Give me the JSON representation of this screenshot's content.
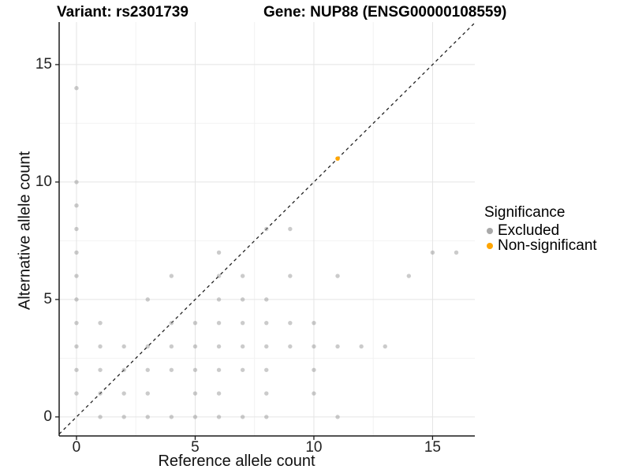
{
  "title": {
    "variant": "Variant: rs2301739",
    "gene": "Gene: NUP88 (ENSG00000108559)"
  },
  "axes": {
    "x_label": "Reference allele count",
    "y_label": "Alternative allele count",
    "x_tick_labels": [
      "0",
      "5",
      "10",
      "15"
    ],
    "y_tick_labels": [
      "0",
      "5",
      "10",
      "15"
    ]
  },
  "legend": {
    "title": "Significance",
    "items": [
      {
        "label": "Excluded",
        "color": "#a9a9a9"
      },
      {
        "label": "Non-significant",
        "color": "#FFA500"
      }
    ]
  },
  "chart_data": {
    "type": "scatter",
    "title": "Variant: rs2301739 / Gene: NUP88 (ENSG00000108559)",
    "xlabel": "Reference allele count",
    "ylabel": "Alternative allele count",
    "xlim": [
      -0.73,
      16.78
    ],
    "ylim": [
      -0.81,
      16.81
    ],
    "x_major_ticks": [
      0,
      5,
      10,
      15
    ],
    "y_major_ticks": [
      0,
      5,
      10,
      15
    ],
    "x_minor_ticks": [
      2.5,
      7.5,
      12.5
    ],
    "y_minor_ticks": [
      2.5,
      7.5,
      12.5
    ],
    "grid": true,
    "legend_position": "right",
    "identity_line": {
      "slope": 1,
      "intercept": 0,
      "style": "dashed",
      "color": "#222222"
    },
    "series": [
      {
        "name": "Excluded",
        "color": "#8c8c8c",
        "opacity": 0.45,
        "marker_radius": 2.7,
        "points": [
          [
            0,
            1
          ],
          [
            0,
            2
          ],
          [
            0,
            3
          ],
          [
            0,
            4
          ],
          [
            0,
            5
          ],
          [
            0,
            6
          ],
          [
            0,
            7
          ],
          [
            0,
            8
          ],
          [
            0,
            9
          ],
          [
            0,
            10
          ],
          [
            0,
            14
          ],
          [
            1,
            0
          ],
          [
            1,
            1
          ],
          [
            1,
            2
          ],
          [
            1,
            3
          ],
          [
            1,
            4
          ],
          [
            2,
            0
          ],
          [
            2,
            1
          ],
          [
            2,
            2
          ],
          [
            2,
            3
          ],
          [
            3,
            0
          ],
          [
            3,
            1
          ],
          [
            3,
            2
          ],
          [
            3,
            3
          ],
          [
            3,
            5
          ],
          [
            4,
            0
          ],
          [
            4,
            2
          ],
          [
            4,
            3
          ],
          [
            4,
            4
          ],
          [
            4,
            6
          ],
          [
            5,
            0
          ],
          [
            5,
            1
          ],
          [
            5,
            2
          ],
          [
            5,
            3
          ],
          [
            5,
            4
          ],
          [
            6,
            0
          ],
          [
            6,
            1
          ],
          [
            6,
            2
          ],
          [
            6,
            3
          ],
          [
            6,
            4
          ],
          [
            6,
            5
          ],
          [
            6,
            6
          ],
          [
            6,
            7
          ],
          [
            7,
            0
          ],
          [
            7,
            2
          ],
          [
            7,
            3
          ],
          [
            7,
            4
          ],
          [
            7,
            5
          ],
          [
            7,
            6
          ],
          [
            8,
            0
          ],
          [
            8,
            1
          ],
          [
            8,
            2
          ],
          [
            8,
            3
          ],
          [
            8,
            4
          ],
          [
            8,
            5
          ],
          [
            8,
            8
          ],
          [
            9,
            3
          ],
          [
            9,
            4
          ],
          [
            9,
            6
          ],
          [
            9,
            8
          ],
          [
            10,
            1
          ],
          [
            10,
            2
          ],
          [
            10,
            3
          ],
          [
            10,
            4
          ],
          [
            11,
            0
          ],
          [
            11,
            3
          ],
          [
            11,
            6
          ],
          [
            12,
            3
          ],
          [
            13,
            3
          ],
          [
            14,
            6
          ],
          [
            15,
            7
          ],
          [
            16,
            7
          ]
        ]
      },
      {
        "name": "Non-significant",
        "color": "#FFA500",
        "opacity": 1,
        "marker_radius": 2.8,
        "points": [
          [
            11,
            11
          ]
        ]
      }
    ]
  }
}
